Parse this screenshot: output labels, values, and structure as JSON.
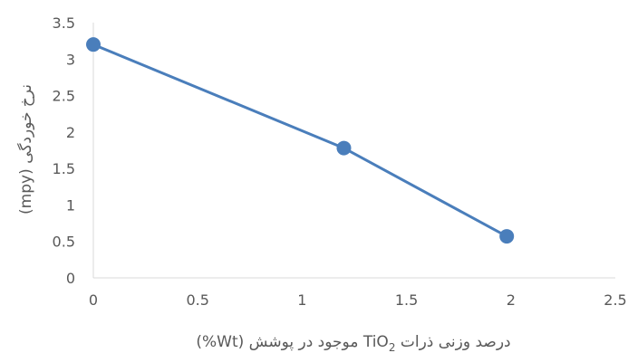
{
  "chart_data": {
    "type": "line",
    "x": [
      0,
      1.2,
      1.98
    ],
    "series": [
      {
        "values": [
          3.2,
          1.78,
          0.57
        ],
        "color": "#4a7ebb"
      }
    ],
    "xlim": [
      0,
      2.5
    ],
    "ylim": [
      0,
      3.5
    ],
    "xticks": [
      0,
      0.5,
      1,
      1.5,
      2,
      2.5
    ],
    "yticks": [
      0,
      0.5,
      1,
      1.5,
      2,
      2.5,
      3,
      3.5
    ],
    "xtick_labels": [
      "0",
      "0.5",
      "1",
      "1.5",
      "2",
      "2.5"
    ],
    "ytick_labels": [
      "0",
      "0.5",
      "1",
      "1.5",
      "2",
      "2.5",
      "3",
      "3.5"
    ],
    "xlabel": "درصد وزنی ذرات TiO2 موجود در پوشش (Wt%)",
    "xlabel_parts": {
      "before": "درصد وزنی ذرات ",
      "formula": "TiO",
      "subscript": "2",
      "after": " موجود در پوشش (Wt%)"
    },
    "ylabel": "نرخ خوردگی (mpy)",
    "grid": false,
    "axis_color": "#d9d9d9",
    "marker": "circle"
  }
}
